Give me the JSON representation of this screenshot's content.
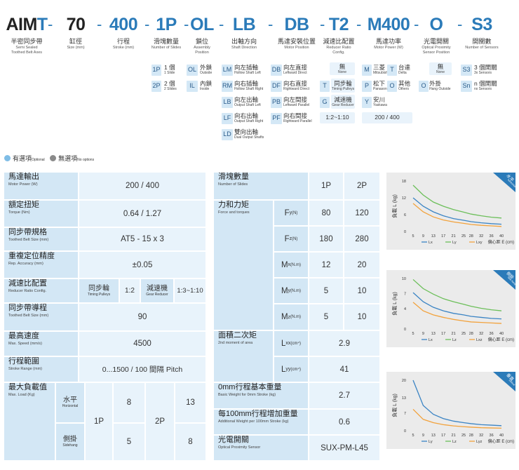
{
  "model_code": [
    {
      "code": "AIMT",
      "cn": "半密同步帶",
      "en": [
        "Semi Sealed",
        "Toothed Belt Axes"
      ]
    },
    {
      "code": "70",
      "cn": "缸徑",
      "en": [
        "Size (mm)"
      ]
    },
    {
      "code": "400",
      "cn": "行程",
      "en": [
        "Stroke (mm)"
      ]
    },
    {
      "code": "1P",
      "cn": "滑塊數量",
      "en": [
        "Number of Slides"
      ]
    },
    {
      "code": "OL",
      "cn": "鎖位",
      "en": [
        "Assembly",
        "Position"
      ]
    },
    {
      "code": "LB",
      "cn": "出軸方向",
      "en": [
        "Shaft Direction"
      ]
    },
    {
      "code": "DB",
      "cn": "馬達安裝位置",
      "en": [
        "Motor Position"
      ]
    },
    {
      "code": "T2",
      "cn": "減速比配置",
      "en": [
        "Reducer Ratio",
        "Config."
      ]
    },
    {
      "code": "M400",
      "cn": "馬達功率",
      "en": [
        "Motor Power (W)"
      ]
    },
    {
      "code": "O",
      "cn": "光電開關",
      "en": [
        "Optical Proximity",
        "Sensor Position"
      ]
    },
    {
      "code": "S3",
      "cn": "開關數",
      "en": [
        "Number of Sensors"
      ]
    }
  ],
  "options": {
    "slides": [
      {
        "code": "1P",
        "cn": "1 個",
        "en": "1 Slide"
      },
      {
        "code": "2P",
        "cn": "2 個",
        "en": "2 Slides"
      }
    ],
    "position": [
      {
        "code": "OL",
        "cn": "外鎖",
        "en": "Outside"
      },
      {
        "code": "IL",
        "cn": "內鎖",
        "en": "Inside"
      }
    ],
    "shaft": [
      {
        "code": "LM",
        "cn": "向左插軸",
        "en": "Hollow Shaft Left"
      },
      {
        "code": "RM",
        "cn": "向右插軸",
        "en": "Hollow Shaft Right"
      },
      {
        "code": "LB",
        "cn": "向左出軸",
        "en": "Output Shaft Left"
      },
      {
        "code": "LF",
        "cn": "向右出軸",
        "en": "Output Shaft Right"
      },
      {
        "code": "LD",
        "cn": "雙向出軸",
        "en": "Dual Output Shafts"
      }
    ],
    "motor_pos": [
      {
        "code": "DB",
        "cn": "向左直接",
        "en": "Leftward Direct"
      },
      {
        "code": "DF",
        "cn": "向右直接",
        "en": "Rightward Direct"
      },
      {
        "code": "PB",
        "cn": "向左間接",
        "en": "Leftward Parallel"
      },
      {
        "code": "PF",
        "cn": "向右間接",
        "en": "Rightward Parallel"
      }
    ],
    "reducer": {
      "none_cn": "無",
      "none_en": "None",
      "items": [
        {
          "code": "T",
          "cn": "同步輪",
          "en": "Timing Pulleys"
        },
        {
          "code": "G",
          "cn": "減速機",
          "en": "Gear Reducer"
        }
      ],
      "ratio": "1:2~1:10"
    },
    "motor": {
      "brands": [
        {
          "code": "M",
          "cn": "三菱",
          "en": "Mitsubishi"
        },
        {
          "code": "T",
          "cn": "台達",
          "en": "Delta"
        },
        {
          "code": "P",
          "cn": "松下",
          "en": "Panasonic"
        },
        {
          "code": "O",
          "cn": "其他",
          "en": "Others"
        },
        {
          "code": "Y",
          "cn": "安川",
          "en": "Yaskawa"
        }
      ],
      "power": "200 / 400"
    },
    "sensor_pos": {
      "none_cn": "無",
      "none_en": "None",
      "item": {
        "code": "O",
        "cn": "外掛",
        "en": "Hang Outside"
      }
    },
    "sensors": [
      {
        "code": "S3",
        "cn": "3 個開關",
        "en": "3x Sensors"
      },
      {
        "code": "Sn",
        "cn": "n 個開關",
        "en": "nx Sensors"
      }
    ]
  },
  "legend": {
    "optional_cn": "有選項",
    "optional_en": "Optional",
    "no_options_cn": "無選項",
    "no_options_en": "No options"
  },
  "colors": {
    "accent": "#2b7bb9",
    "cell_dark": "#d3e7f5",
    "cell_light": "#e8f3fb",
    "optional_dot": "#7fbde6",
    "no_option_dot": "#8a8a8a",
    "series_blue": "#3b84c4",
    "series_green": "#6cbf5a",
    "series_orange": "#f2a23c"
  },
  "spec_left": {
    "motor_power": {
      "cn": "馬達輸出",
      "en": "Motor Power (W)",
      "value": "200 / 400"
    },
    "torque": {
      "cn": "額定扭矩",
      "en": "Torque (Nm)",
      "value": "0.64 / 1.27"
    },
    "belt": {
      "cn": "同步帶規格",
      "en": "Toothed Belt Size (mm)",
      "value": "AT5 - 15 x 3"
    },
    "accuracy": {
      "cn": "重複定位精度",
      "en": "Rep. Accuracy (mm)",
      "value": "±0.05"
    },
    "reducer": {
      "cn": "減速比配置",
      "en": "Reducer Ratio Config.",
      "pulley_cn": "同步輪",
      "pulley_en": "Timing Pulleys",
      "pulley_val": "1:2",
      "gear_cn": "減速機",
      "gear_en": "Gear Reducer",
      "gear_val": "1:3~1:10"
    },
    "lead": {
      "cn": "同步帶導程",
      "en": "Toothed Belt Size (mm)",
      "value": "90"
    },
    "speed": {
      "cn": "最高速度",
      "en": "Max. Speed (mm/s)",
      "value": "4500"
    },
    "stroke": {
      "cn": "行程範圍",
      "en": "Stroke Range (mm)",
      "value": "0...1500 / 100 間隔 Pitch"
    },
    "load": {
      "cn": "最大負載值",
      "en": "Max. Load (Kg)",
      "h_cn": "水平",
      "h_en": "Horizontal",
      "v_cn": "側掛",
      "v_en": "Sidehang",
      "p1": "1P",
      "p2": "2P",
      "h1": "8",
      "h2": "13",
      "v1": "5",
      "v2": "8"
    }
  },
  "spec_right": {
    "slides": {
      "cn": "滑塊數量",
      "en": "Number of Slides",
      "c1": "1P",
      "c2": "2P"
    },
    "force": {
      "cn": "力和力矩",
      "en": "Force and torques",
      "rows": [
        {
          "sym": "F",
          "sub": "y",
          "unit": "(N)",
          "v1": "80",
          "v2": "120"
        },
        {
          "sym": "F",
          "sub": "z",
          "unit": "(N)",
          "v1": "180",
          "v2": "280"
        },
        {
          "sym": "M",
          "sub": "x",
          "unit": "(N.m)",
          "v1": "12",
          "v2": "20"
        },
        {
          "sym": "M",
          "sub": "y",
          "unit": "(N.m)",
          "v1": "5",
          "v2": "10"
        },
        {
          "sym": "M",
          "sub": "z",
          "unit": "(N.m)",
          "v1": "5",
          "v2": "10"
        }
      ]
    },
    "moment": {
      "cn": "面積二次矩",
      "en": "2nd moment of area",
      "rows": [
        {
          "sym": "L",
          "sub": "xx",
          "unit": "(cm⁴)",
          "value": "2.9"
        },
        {
          "sym": "L",
          "sub": "yy",
          "unit": "(cm⁴)",
          "value": "41"
        }
      ]
    },
    "base_weight": {
      "cn": "0mm行程基本重量",
      "en": "Basic Weight for 0mm Stroke (kg)",
      "value": "2.7"
    },
    "add_weight": {
      "cn": "每100mm行程增加重量",
      "en": "Additional Weight per 100mm Stroke (kg)",
      "value": "0.6"
    },
    "sensor": {
      "cn": "光電開關",
      "en": "Optical Proximity Sensor",
      "value": "SUX-PM-L45"
    }
  },
  "chart_data": [
    {
      "type": "line",
      "tag_cn": "水平",
      "tag_en": "horizontal",
      "ylabel": "負載 L (kg)",
      "xlabel": "偏心距 E (cm)",
      "x": [
        5,
        9,
        13,
        17,
        21,
        25,
        28,
        32,
        36,
        40
      ],
      "xticks": [
        "5",
        "9",
        "13",
        "17",
        "21",
        "25",
        "28",
        "32",
        "36",
        "40"
      ],
      "yticks": [
        "18",
        "12",
        "6",
        "0"
      ],
      "ylim": [
        0,
        18
      ],
      "series": [
        {
          "name": "Lx",
          "color": "#3b84c4",
          "values": [
            12.0,
            9.0,
            7.0,
            5.6,
            4.6,
            4.0,
            3.5,
            3.1,
            2.8,
            2.6
          ]
        },
        {
          "name": "Ly",
          "color": "#6cbf5a",
          "values": [
            16.5,
            13.0,
            10.5,
            9.0,
            7.8,
            6.9,
            6.2,
            5.6,
            5.1,
            4.8
          ]
        },
        {
          "name": "Lxy",
          "color": "#f2a23c",
          "values": [
            10.0,
            7.0,
            5.2,
            4.1,
            3.4,
            2.9,
            2.5,
            2.2,
            2.0,
            1.8
          ]
        }
      ]
    },
    {
      "type": "line",
      "tag_cn": "側掛",
      "tag_en": "side hang",
      "ylabel": "負載 L (kg)",
      "xlabel": "偏心距 E (cm)",
      "x": [
        5,
        9,
        13,
        17,
        21,
        25,
        28,
        32,
        36,
        40
      ],
      "xticks": [
        "5",
        "9",
        "13",
        "17",
        "21",
        "25",
        "28",
        "32",
        "36",
        "40"
      ],
      "yticks": [
        "10",
        "7",
        "4",
        "0"
      ],
      "ylim": [
        0,
        10
      ],
      "series": [
        {
          "name": "Lx",
          "color": "#3b84c4",
          "values": [
            7.2,
            5.4,
            4.3,
            3.6,
            3.1,
            2.8,
            2.5,
            2.3,
            2.1,
            2.0
          ]
        },
        {
          "name": "Lz",
          "color": "#6cbf5a",
          "values": [
            9.8,
            8.0,
            6.9,
            6.0,
            5.4,
            4.9,
            4.5,
            4.1,
            3.8,
            3.6
          ]
        },
        {
          "name": "Lxz",
          "color": "#f2a23c",
          "values": [
            5.3,
            3.6,
            2.8,
            2.3,
            1.9,
            1.6,
            1.4,
            1.3,
            1.2,
            1.1
          ]
        }
      ]
    },
    {
      "type": "line",
      "tag_cn": "垂直",
      "tag_en": "vertical",
      "ylabel": "負載 L (kg)",
      "xlabel": "偏心距 E (cm)",
      "x": [
        5,
        9,
        13,
        17,
        21,
        25,
        28,
        32,
        36,
        40
      ],
      "xticks": [
        "5",
        "9",
        "13",
        "17",
        "21",
        "25",
        "28",
        "32",
        "36",
        "40"
      ],
      "yticks": [
        "20",
        "13",
        "7",
        "0"
      ],
      "ylim": [
        0,
        20
      ],
      "series": [
        {
          "name": "Ly",
          "color": "#3b84c4",
          "values": [
            20.0,
            10.0,
            6.5,
            4.8,
            3.8,
            3.2,
            2.8,
            2.4,
            2.2,
            2.0
          ]
        },
        {
          "name": "Lz",
          "color": "#6cbf5a",
          "values": [
            0,
            0,
            0,
            0,
            0,
            0,
            0,
            0,
            0,
            0
          ]
        },
        {
          "name": "Lyz",
          "color": "#f2a23c",
          "values": [
            8.5,
            4.5,
            3.2,
            2.4,
            1.9,
            1.6,
            1.4,
            1.2,
            1.1,
            1.0
          ]
        }
      ]
    }
  ]
}
